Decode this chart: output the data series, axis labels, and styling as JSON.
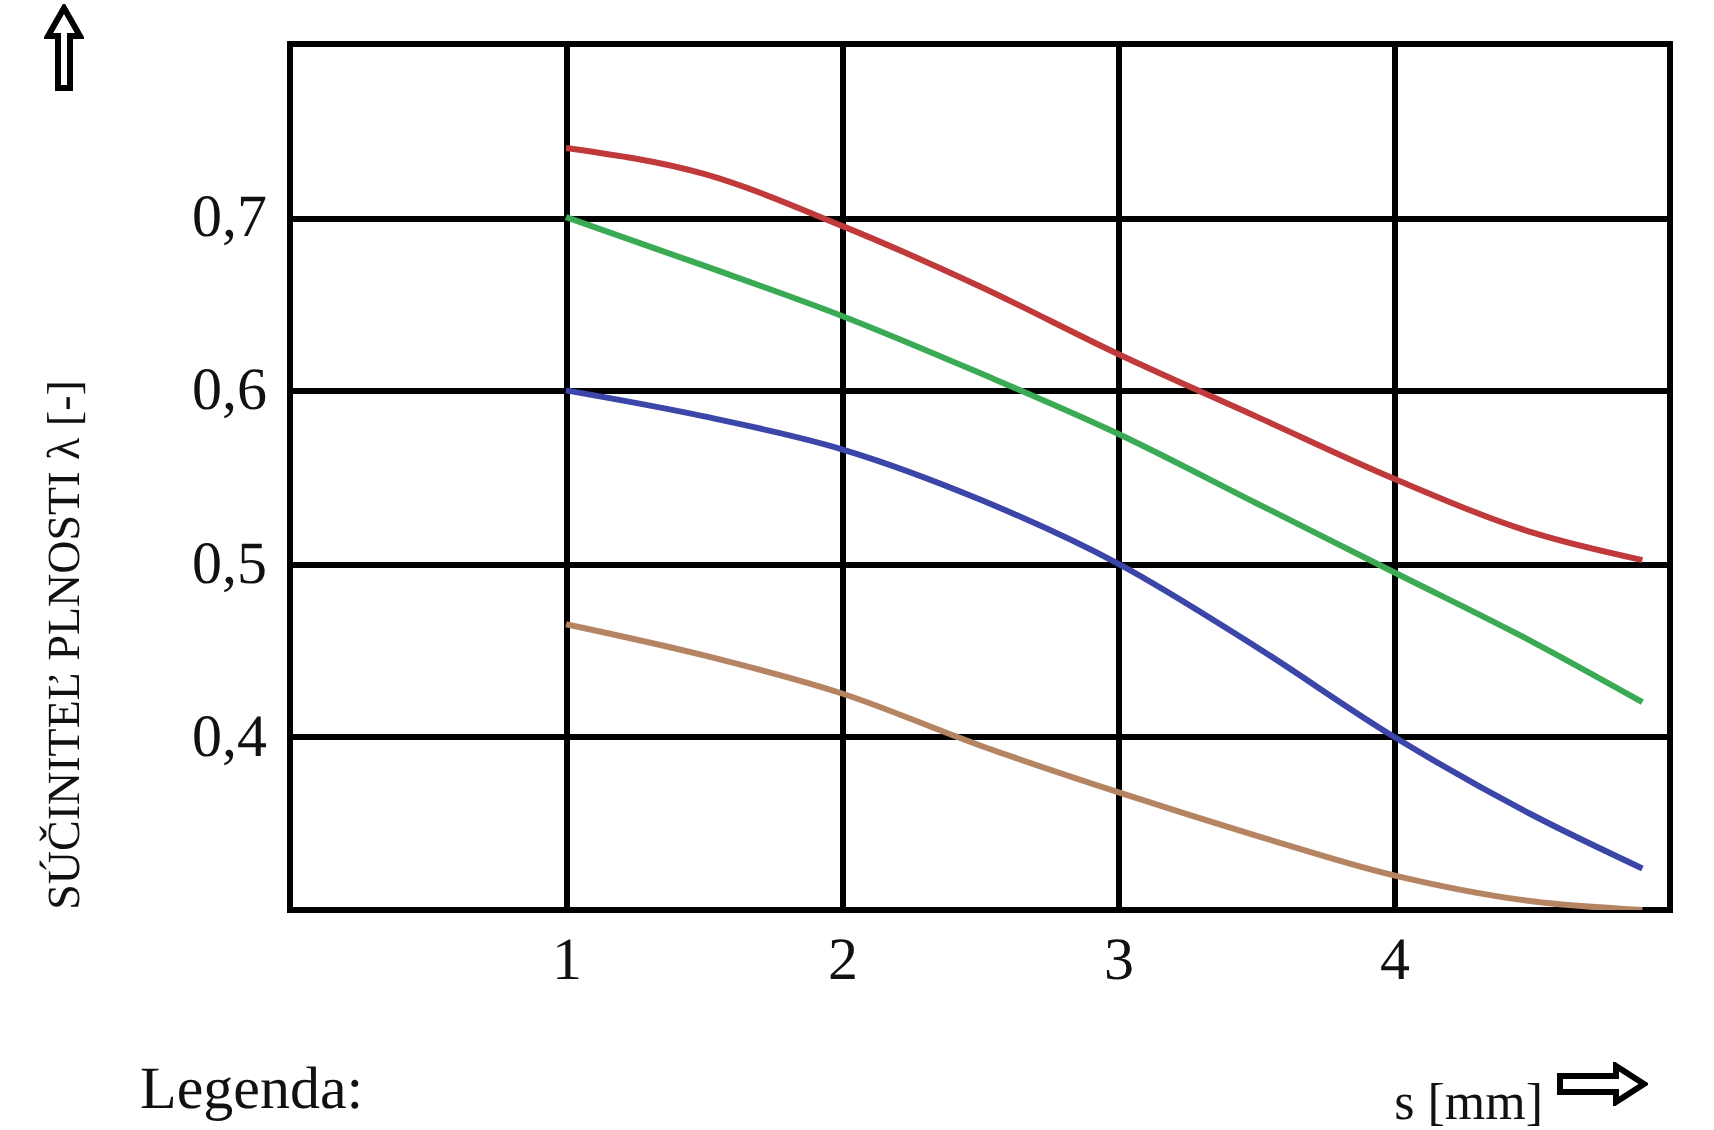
{
  "chart_data": {
    "type": "line",
    "xlabel": "s [mm]",
    "ylabel": "SÚČINITEĽ PLNOSTI λ [-]",
    "annotations": [
      "Legenda:"
    ],
    "xlim": [
      0,
      5
    ],
    "ylim": [
      0.3,
      0.8
    ],
    "xticks": [
      1,
      2,
      3,
      4
    ],
    "yticks": [
      {
        "value": 0.4,
        "label": "0,4"
      },
      {
        "value": 0.5,
        "label": "0,5"
      },
      {
        "value": 0.6,
        "label": "0,6"
      },
      {
        "value": 0.7,
        "label": "0,7"
      }
    ],
    "grid": true,
    "line_style": "solid",
    "marker": "none",
    "series": [
      {
        "color": "#c0393b",
        "x": [
          1,
          1.5,
          2,
          2.5,
          3,
          3.5,
          4,
          4.5,
          4.9
        ],
        "values": [
          0.74,
          0.725,
          0.695,
          0.66,
          0.621,
          0.585,
          0.549,
          0.518,
          0.502
        ]
      },
      {
        "color": "#3aaa55",
        "x": [
          1,
          1.5,
          2,
          2.5,
          3,
          3.5,
          4,
          4.5,
          4.9
        ],
        "values": [
          0.7,
          0.672,
          0.643,
          0.61,
          0.575,
          0.535,
          0.495,
          0.455,
          0.42
        ]
      },
      {
        "color": "#3c45a8",
        "x": [
          1,
          1.5,
          2,
          2.5,
          3,
          3.5,
          4,
          4.5,
          4.9
        ],
        "values": [
          0.6,
          0.585,
          0.566,
          0.537,
          0.5,
          0.452,
          0.4,
          0.355,
          0.324
        ]
      },
      {
        "color": "#b58563",
        "x": [
          1,
          1.5,
          2,
          2.5,
          3,
          3.5,
          4,
          4.5,
          4.9
        ],
        "values": [
          0.465,
          0.447,
          0.425,
          0.395,
          0.368,
          0.343,
          0.32,
          0.305,
          0.3
        ]
      }
    ]
  }
}
